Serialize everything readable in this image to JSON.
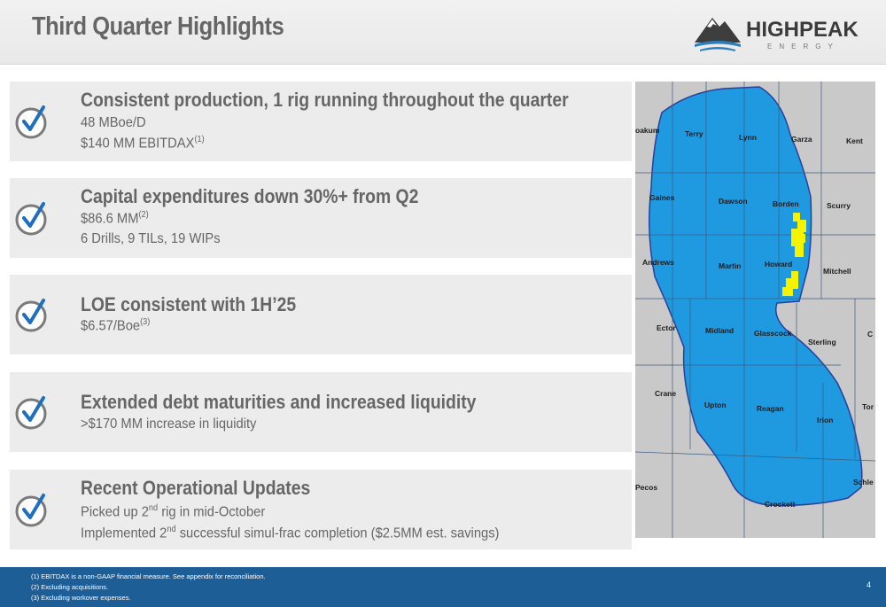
{
  "header": {
    "title": "Third Quarter Highlights",
    "logo_main": "HIGHPEAK",
    "logo_sub": "ENERGY"
  },
  "highlights": [
    {
      "title": "Consistent production, 1 rig running throughout the quarter",
      "lines": [
        {
          "text": "48 MBoe/D",
          "sup": ""
        },
        {
          "text": "$140 MM EBITDAX",
          "sup": "(1)"
        }
      ]
    },
    {
      "title": "Capital expenditures down 30%+ from Q2",
      "lines": [
        {
          "text": "$86.6 MM",
          "sup": "(2)"
        },
        {
          "text": "6 Drills, 9 TILs, 19 WIPs",
          "sup": ""
        }
      ]
    },
    {
      "title": "LOE consistent with 1H’25",
      "lines": [
        {
          "text": "$6.57/Boe",
          "sup": "(3)"
        }
      ]
    },
    {
      "title": "Extended debt maturities and increased liquidity",
      "lines": [
        {
          "text": ">$170 MM increase in liquidity",
          "sup": ""
        }
      ]
    },
    {
      "title": "Recent Operational Updates",
      "lines": [
        {
          "pre": "Picked up 2",
          "sup": "nd",
          "post": " rig in mid-October"
        },
        {
          "pre": "Implemented 2",
          "sup": "nd",
          "post": " successful simul-frac completion ($2.5MM est. savings)"
        }
      ]
    }
  ],
  "map": {
    "counties": [
      "oakum",
      "Terry",
      "Lynn",
      "Garza",
      "Kent",
      "Gaines",
      "Dawson",
      "Borden",
      "Scurry",
      "Andrews",
      "Martin",
      "Howard",
      "Mitchell",
      "Ector",
      "Midland",
      "Glasscock",
      "Sterling",
      "C",
      "Crane",
      "Upton",
      "Reagan",
      "Irion",
      "Tor",
      "Pecos",
      "Crockett",
      "Schle"
    ]
  },
  "footer": {
    "notes": [
      "(1)  EBITDAX is a non-GAAP financial measure. See appendix for reconciliation.",
      "(2)  Excluding acquisitions.",
      "(3)  Excluding workover expenses."
    ],
    "page_number": "4"
  },
  "colors": {
    "accent_blue": "#1e5e97",
    "map_blue": "#1f9ae0",
    "acreage_yellow": "#f4f400",
    "text_gray": "#666666"
  }
}
